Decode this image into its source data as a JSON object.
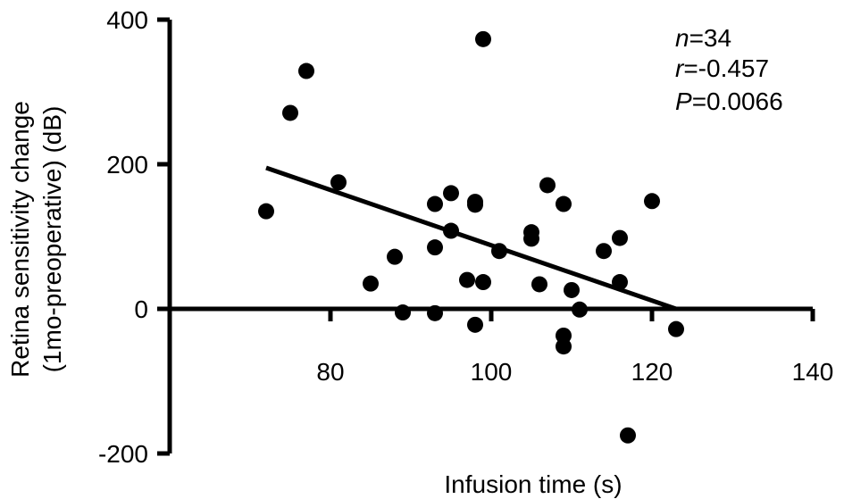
{
  "chart_data": {
    "type": "scatter",
    "xlabel": "Infusion time (s)",
    "ylabel_line1": "Retina sensitivity change",
    "ylabel_line2": "(1mo-preoperative) (dB)",
    "xlim": [
      60,
      140
    ],
    "ylim": [
      -200,
      400
    ],
    "x_ticks": [
      80,
      100,
      120,
      140
    ],
    "x_tick_labels": [
      "80",
      "100",
      "120",
      "140"
    ],
    "y_ticks": [
      400,
      200,
      0,
      -200
    ],
    "y_tick_labels": [
      "400",
      "200",
      "0",
      "-200"
    ],
    "grid": false,
    "legend": "none",
    "annotation": {
      "n_symbol": "n",
      "n_value": "=34",
      "r_symbol": "r",
      "r_value": "=-0.457",
      "p_symbol": "P",
      "p_value": "=0.0066"
    },
    "trend_line": {
      "x": [
        72,
        123
      ],
      "y": [
        195,
        0
      ]
    },
    "points": [
      {
        "x": 72,
        "y": 135
      },
      {
        "x": 75,
        "y": 271
      },
      {
        "x": 77,
        "y": 329
      },
      {
        "x": 81,
        "y": 175
      },
      {
        "x": 85,
        "y": 35
      },
      {
        "x": 88,
        "y": 72
      },
      {
        "x": 89,
        "y": -5
      },
      {
        "x": 93,
        "y": 145
      },
      {
        "x": 93,
        "y": 85
      },
      {
        "x": 93,
        "y": -6
      },
      {
        "x": 95,
        "y": 160
      },
      {
        "x": 95,
        "y": 108
      },
      {
        "x": 97,
        "y": 40
      },
      {
        "x": 98,
        "y": 148
      },
      {
        "x": 98,
        "y": 144
      },
      {
        "x": 98,
        "y": -22
      },
      {
        "x": 99,
        "y": 37
      },
      {
        "x": 99,
        "y": 373
      },
      {
        "x": 101,
        "y": 80
      },
      {
        "x": 105,
        "y": 106
      },
      {
        "x": 105,
        "y": 97
      },
      {
        "x": 106,
        "y": 34
      },
      {
        "x": 107,
        "y": 171
      },
      {
        "x": 109,
        "y": 145
      },
      {
        "x": 109,
        "y": -37
      },
      {
        "x": 109,
        "y": -52
      },
      {
        "x": 110,
        "y": 26
      },
      {
        "x": 111,
        "y": -1
      },
      {
        "x": 114,
        "y": 80
      },
      {
        "x": 116,
        "y": 98
      },
      {
        "x": 116,
        "y": 37
      },
      {
        "x": 117,
        "y": -175
      },
      {
        "x": 120,
        "y": 149
      },
      {
        "x": 123,
        "y": -28
      }
    ]
  }
}
